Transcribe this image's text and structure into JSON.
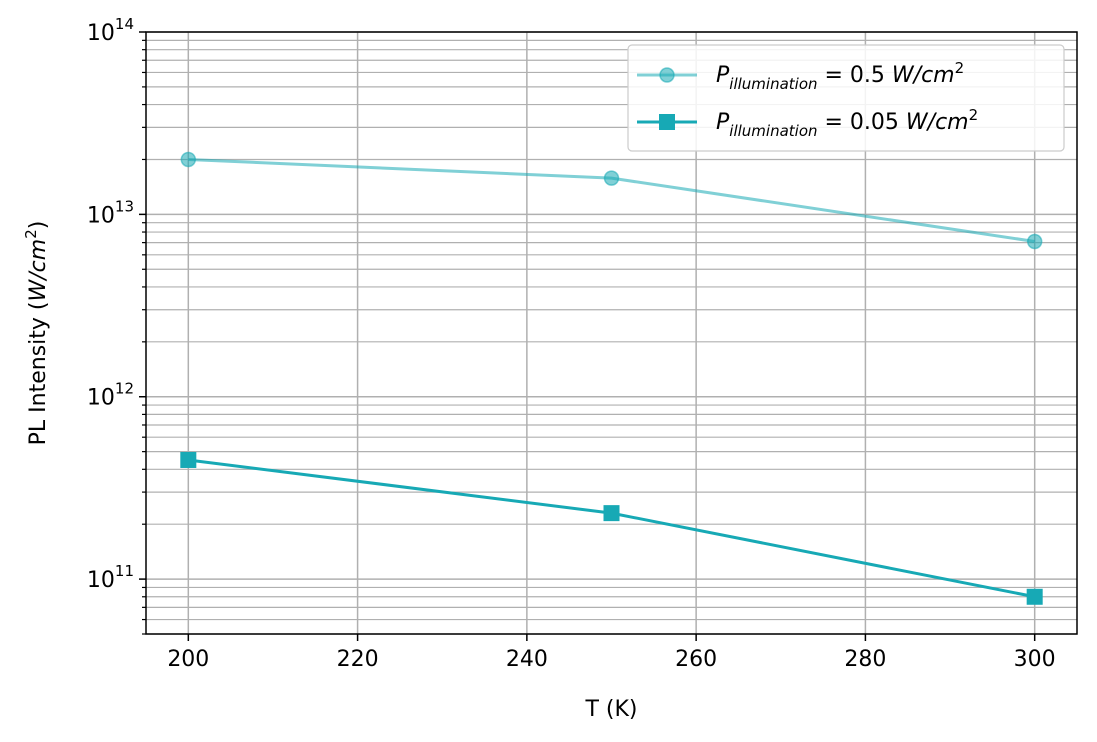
{
  "chart_data": {
    "type": "line",
    "xlabel": "T (K)",
    "ylabel_prefix": "PL Intensity (",
    "ylabel_unit": "W/cm",
    "ylabel_exp": "2",
    "ylabel_suffix": ")",
    "yscale": "log",
    "xlim": [
      195,
      305
    ],
    "ylim": [
      50000000000.0,
      100000000000000.0
    ],
    "grid": true,
    "legend_position": "upper right",
    "x_ticks": [
      200,
      220,
      240,
      260,
      280,
      300
    ],
    "x_tick_labels": [
      "200",
      "220",
      "240",
      "260",
      "280",
      "300"
    ],
    "y_ticks": [
      100000000000.0,
      1000000000000.0,
      10000000000000.0,
      100000000000000.0
    ],
    "y_tick_labels": [
      {
        "base": "10",
        "exp": "11"
      },
      {
        "base": "10",
        "exp": "12"
      },
      {
        "base": "10",
        "exp": "13"
      },
      {
        "base": "10",
        "exp": "14"
      }
    ],
    "series": [
      {
        "label_main": "P",
        "label_sub": "illumination",
        "label_eq": " = 0.5 ",
        "label_unit": "W/cm",
        "label_exp": "2",
        "marker": "circle",
        "color": "#17a9b5",
        "alpha": 0.55,
        "x": [
          200,
          250,
          300
        ],
        "y": [
          20000000000000.0,
          15800000000000.0,
          7100000000000.0
        ]
      },
      {
        "label_main": "P",
        "label_sub": "illumination",
        "label_eq": " = 0.05 ",
        "label_unit": "W/cm",
        "label_exp": "2",
        "marker": "square",
        "color": "#17a9b5",
        "alpha": 1.0,
        "x": [
          200,
          250,
          300
        ],
        "y": [
          450000000000.0,
          230000000000.0,
          80000000000.0
        ]
      }
    ]
  }
}
